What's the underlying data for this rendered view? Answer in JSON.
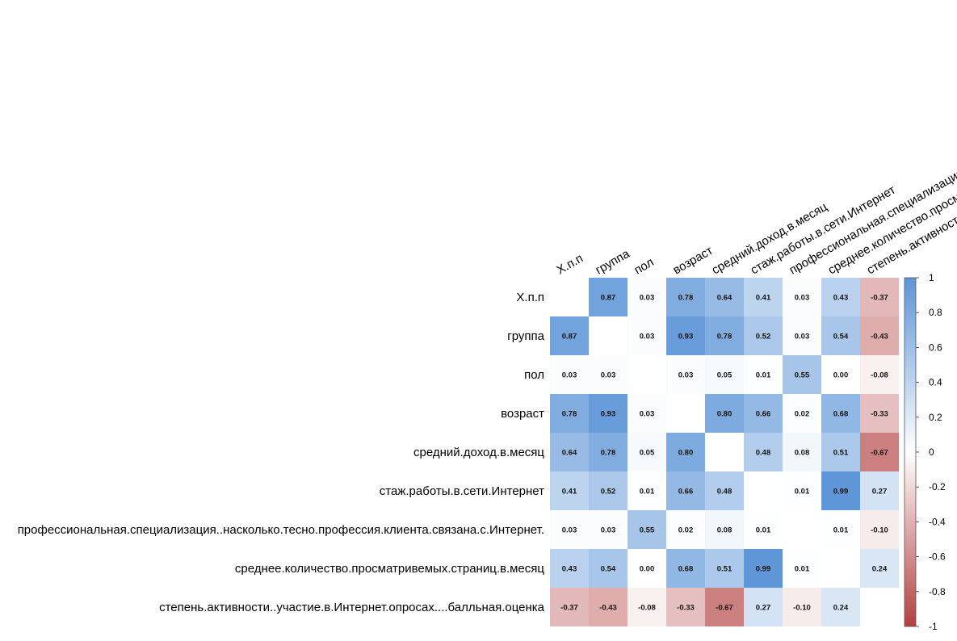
{
  "chart_data": {
    "type": "heatmap",
    "title": "",
    "variables": [
      "X.п.п",
      "группа",
      "пол",
      "возраст",
      "средний.доход.в.месяц",
      "стаж.работы.в.сети.Интернет",
      "профессиональная.специализация..насколько.тесно.профессия.клиента.связана.с.Интернет.",
      "среднее.количество.просматривемых.страниц.в.месяц",
      "степень.активности..участие.в.Интернет.опросах....балльная.оценка"
    ],
    "matrix": [
      [
        null,
        0.87,
        0.03,
        0.78,
        0.64,
        0.41,
        0.03,
        0.43,
        -0.37
      ],
      [
        0.87,
        null,
        0.03,
        0.93,
        0.78,
        0.52,
        0.03,
        0.54,
        -0.43
      ],
      [
        0.03,
        0.03,
        null,
        0.03,
        0.05,
        0.01,
        0.55,
        0.0,
        -0.08
      ],
      [
        0.78,
        0.93,
        0.03,
        null,
        0.8,
        0.66,
        0.02,
        0.68,
        -0.33
      ],
      [
        0.64,
        0.78,
        0.05,
        0.8,
        null,
        0.48,
        0.08,
        0.51,
        -0.67
      ],
      [
        0.41,
        0.52,
        0.01,
        0.66,
        0.48,
        null,
        0.01,
        0.99,
        0.27
      ],
      [
        0.03,
        0.03,
        0.55,
        0.02,
        0.08,
        0.01,
        null,
        0.01,
        -0.1
      ],
      [
        0.43,
        0.54,
        0.0,
        0.68,
        0.51,
        0.99,
        0.01,
        null,
        0.24
      ],
      [
        -0.37,
        -0.43,
        -0.08,
        -0.33,
        -0.67,
        0.27,
        -0.1,
        0.24,
        null
      ]
    ],
    "color_scale": {
      "range": [
        -1,
        1
      ],
      "ticks": [
        1,
        0.8,
        0.6,
        0.4,
        0.2,
        0,
        -0.2,
        -0.4,
        -0.6,
        -0.8,
        -1
      ],
      "low_color": "#b2403f",
      "mid_color": "#ffffff",
      "high_color": "#5d95d7"
    },
    "legend_position": "right"
  }
}
